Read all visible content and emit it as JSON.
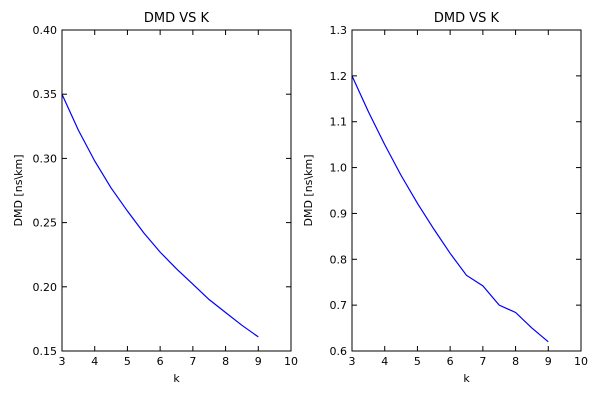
{
  "chart_data": [
    {
      "type": "line",
      "title": "DMD VS K",
      "xlabel": "k",
      "ylabel": "DMD [ns\\km]",
      "xlim": [
        3,
        10
      ],
      "ylim": [
        0.15,
        0.4
      ],
      "xticks": [
        "3",
        "4",
        "5",
        "6",
        "7",
        "8",
        "9",
        "10"
      ],
      "yticks": [
        "0.15",
        "0.20",
        "0.25",
        "0.30",
        "0.35",
        "0.40"
      ],
      "grid": false,
      "series": [
        {
          "color": "#0000ff",
          "x": [
            3,
            3.5,
            4,
            4.5,
            5,
            5.5,
            6,
            6.5,
            7,
            7.5,
            8,
            8.5,
            9
          ],
          "y": [
            0.35,
            0.322,
            0.298,
            0.277,
            0.259,
            0.242,
            0.227,
            0.214,
            0.202,
            0.19,
            0.18,
            0.17,
            0.161
          ]
        }
      ]
    },
    {
      "type": "line",
      "title": "DMD VS K",
      "xlabel": "k",
      "ylabel": "DMD [ns\\km]",
      "xlim": [
        3,
        10
      ],
      "ylim": [
        0.6,
        1.3
      ],
      "xticks": [
        "3",
        "4",
        "5",
        "6",
        "7",
        "8",
        "9",
        "10"
      ],
      "yticks": [
        "0.6",
        "0.7",
        "0.8",
        "0.9",
        "1.0",
        "1.1",
        "1.2",
        "1.3"
      ],
      "grid": false,
      "series": [
        {
          "color": "#0000ff",
          "x": [
            3,
            3.5,
            4,
            4.5,
            5,
            5.5,
            6,
            6.5,
            7,
            7.5,
            8,
            8.5,
            9
          ],
          "y": [
            1.2,
            1.122,
            1.05,
            0.983,
            0.922,
            0.866,
            0.813,
            0.765,
            0.742,
            0.7,
            0.684,
            0.65,
            0.62
          ]
        }
      ]
    }
  ]
}
